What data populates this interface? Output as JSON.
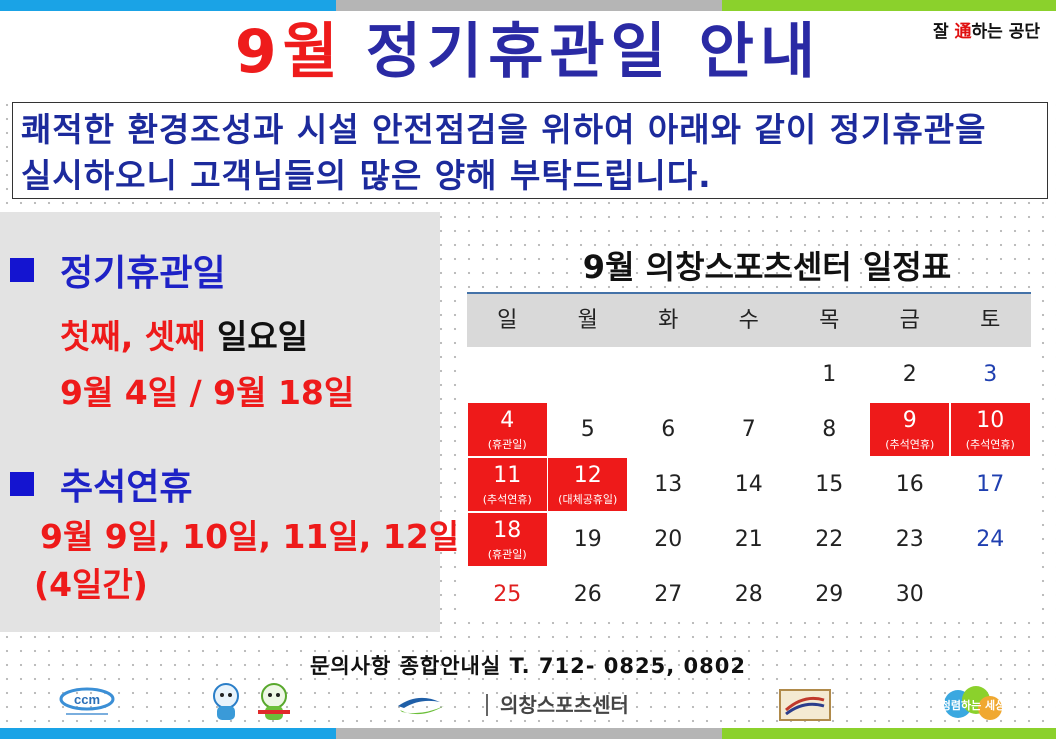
{
  "slogan": {
    "pre": "잘 ",
    "hl": "通",
    "post": "하는 공단"
  },
  "title": {
    "month": "9월",
    "rest": "정기휴관일 안내"
  },
  "notice": "쾌적한 환경조성과 시설 안전점검을 위하여 아래와 같이 정기휴관을\n실시하오니 고객님들의 많은 양해 부탁드립니다.",
  "left": {
    "section1": {
      "heading": "정기휴관일",
      "ordinal": "첫째, 셋째",
      "day": " 일요일",
      "dates": "9월 4일 / 9월 18일"
    },
    "section2": {
      "heading": "추석연휴",
      "dates": "9월 9일, 10일, 11일, 12일",
      "duration": "(4일간)"
    }
  },
  "calendar": {
    "title": "9월 의창스포츠센터 일정표",
    "weekdays": [
      "일",
      "월",
      "화",
      "수",
      "목",
      "금",
      "토"
    ],
    "weeks": [
      [
        {
          "d": ""
        },
        {
          "d": ""
        },
        {
          "d": ""
        },
        {
          "d": ""
        },
        {
          "d": "1"
        },
        {
          "d": "2"
        },
        {
          "d": "3",
          "t": "sat"
        }
      ],
      [
        {
          "d": "4",
          "note": "(휴관일)",
          "hol": true
        },
        {
          "d": "5"
        },
        {
          "d": "6"
        },
        {
          "d": "7"
        },
        {
          "d": "8"
        },
        {
          "d": "9",
          "note": "(추석연휴)",
          "hol": true
        },
        {
          "d": "10",
          "note": "(추석연휴)",
          "hol": true
        }
      ],
      [
        {
          "d": "11",
          "note": "(추석연휴)",
          "hol": true
        },
        {
          "d": "12",
          "note": "(대체공휴일)",
          "hol": true
        },
        {
          "d": "13"
        },
        {
          "d": "14"
        },
        {
          "d": "15"
        },
        {
          "d": "16"
        },
        {
          "d": "17",
          "t": "sat"
        }
      ],
      [
        {
          "d": "18",
          "note": "(휴관일)",
          "hol": true
        },
        {
          "d": "19"
        },
        {
          "d": "20"
        },
        {
          "d": "21"
        },
        {
          "d": "22"
        },
        {
          "d": "23"
        },
        {
          "d": "24",
          "t": "sat"
        }
      ],
      [
        {
          "d": "25",
          "t": "sun"
        },
        {
          "d": "26"
        },
        {
          "d": "27"
        },
        {
          "d": "28"
        },
        {
          "d": "29"
        },
        {
          "d": "30"
        },
        {
          "d": ""
        }
      ]
    ]
  },
  "contact": "문의사항   종합안내실 T. 712- 0825, 0802",
  "logos": {
    "ccm": "ccm",
    "center": "의창스포츠센터",
    "badge": "청렴하는 세상"
  },
  "colors": {
    "red": "#ee1a1a",
    "navy": "#1c2a9c",
    "blue": "#1414d0",
    "panel": "#e3e3e3"
  }
}
